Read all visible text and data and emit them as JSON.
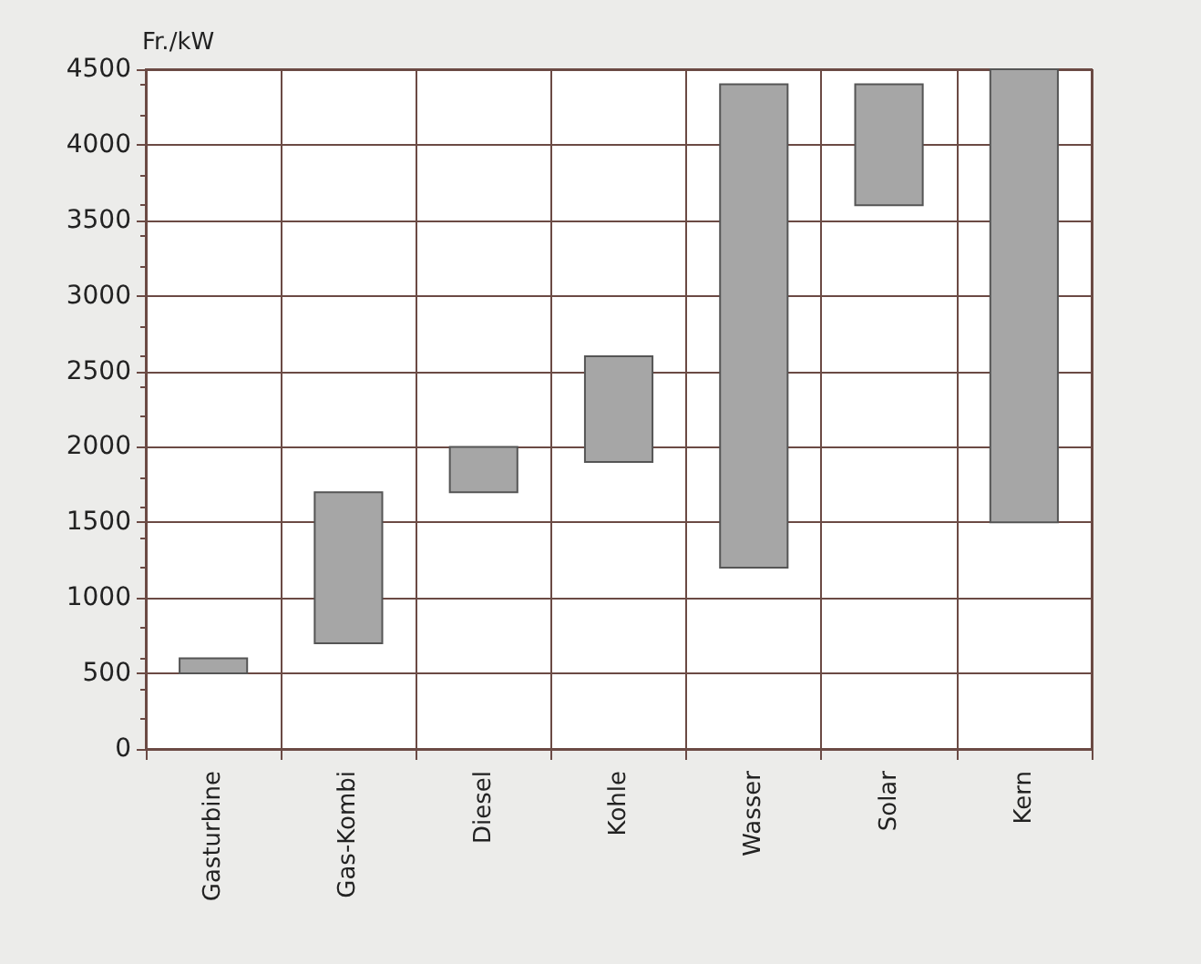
{
  "chart_data": {
    "type": "bar",
    "ylabel": "Fr./kW",
    "categories": [
      "Gasturbine",
      "Gas-Kombi",
      "Diesel",
      "Kohle",
      "Wasser",
      "Solar",
      "Kern"
    ],
    "base": [
      500,
      700,
      1700,
      1900,
      1200,
      3600,
      1500
    ],
    "values": [
      100,
      1000,
      300,
      700,
      3200,
      800,
      3000
    ],
    "color": "#a6a6a6",
    "ylim": [
      0,
      4500
    ],
    "yticks": [
      0,
      500,
      1000,
      1500,
      2000,
      2500,
      3000,
      3500,
      4000,
      4500
    ],
    "grid": true
  }
}
